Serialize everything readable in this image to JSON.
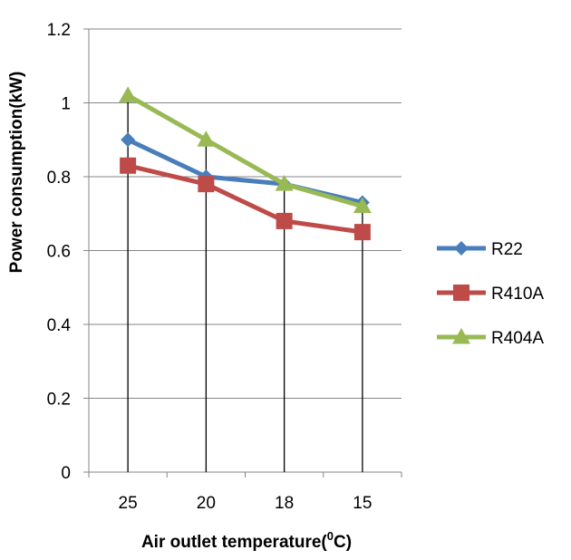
{
  "chart_data": {
    "type": "line",
    "title": "",
    "xlabel": "Air outlet temperature(",
    "xlabel_sup": "0",
    "xlabel_end": "C)",
    "ylabel": "Power consumption(kW)",
    "categories": [
      "25",
      "20",
      "18",
      "15"
    ],
    "ylim": [
      0,
      1.2
    ],
    "yticks": [
      "0",
      "0.2",
      "0.4",
      "0.6",
      "0.8",
      "1",
      "1.2"
    ],
    "grid": "horizontal",
    "drop_lines": true,
    "legend_position": "right",
    "series": [
      {
        "name": "R22",
        "values": [
          0.9,
          0.8,
          0.78,
          0.73
        ],
        "color": "#4a7ebb",
        "marker": "diamond"
      },
      {
        "name": "R410A",
        "values": [
          0.83,
          0.78,
          0.68,
          0.65
        ],
        "color": "#be4b48",
        "marker": "square"
      },
      {
        "name": "R404A",
        "values": [
          1.02,
          0.9,
          0.78,
          0.72
        ],
        "color": "#98b954",
        "marker": "triangle"
      }
    ]
  }
}
